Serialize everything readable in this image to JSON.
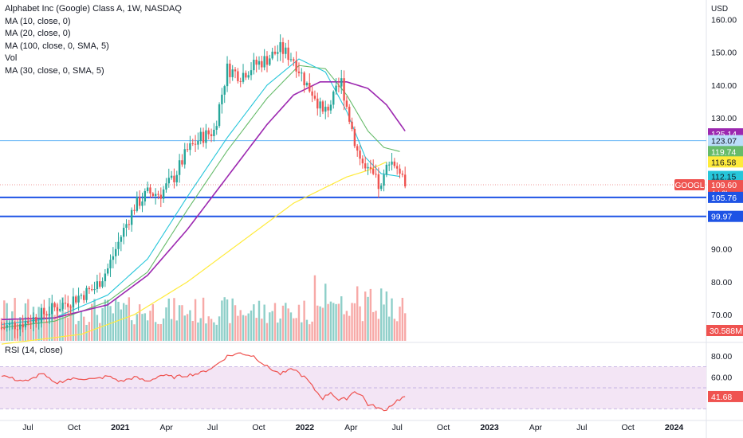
{
  "header": {
    "title": "Alphabet Inc (Google) Class A, 1W, NASDAQ",
    "studies": [
      "MA (10, close, 0)",
      "MA (20, close, 0)",
      "MA (100, close, 0, SMA, 5)",
      "Vol",
      "MA (30, close, 0, SMA, 5)"
    ],
    "rsi_label": "RSI (14, close)",
    "currency": "USD"
  },
  "colors": {
    "up": "#26a69a",
    "down": "#ef5350",
    "vol_up": "#8ecfc9",
    "vol_down": "#f7a9a7",
    "ma10": "#26c6da",
    "ma20": "#66bb6a",
    "ma_long": "#ffeb3b",
    "ma30": "#9c27b0",
    "rsi": "#ef5350",
    "rsi_band": "#f3e5f5",
    "hline_light": "#64b5f6",
    "hline_dark": "#1e53e5"
  },
  "chart_data": {
    "type": "candlestick",
    "price_axis": {
      "ticks": [
        70,
        80,
        90,
        100,
        110,
        120,
        130,
        140,
        150,
        160
      ],
      "range": [
        62,
        165
      ],
      "unit": "USD"
    },
    "time_axis": {
      "labels": [
        "Jul",
        "Oct",
        "2021",
        "Apr",
        "Jul",
        "Oct",
        "2022",
        "Apr",
        "Jul",
        "Oct",
        "2023",
        "Apr",
        "Jul",
        "Oct",
        "2024"
      ]
    },
    "anchors": {
      "ma30": [
        [
          0,
          68.5
        ],
        [
          20,
          69
        ],
        [
          40,
          73
        ],
        [
          55,
          82
        ],
        [
          70,
          96
        ],
        [
          85,
          112
        ],
        [
          100,
          128
        ],
        [
          110,
          137
        ],
        [
          120,
          141
        ],
        [
          130,
          141
        ],
        [
          138,
          139
        ],
        [
          145,
          134
        ],
        [
          152,
          126
        ]
      ],
      "ma_long": [
        [
          0,
          61
        ],
        [
          30,
          64
        ],
        [
          50,
          70
        ],
        [
          70,
          80
        ],
        [
          90,
          92
        ],
        [
          110,
          104
        ],
        [
          130,
          112
        ],
        [
          138,
          114
        ],
        [
          145,
          116.58
        ]
      ],
      "ma20": [
        [
          0,
          66
        ],
        [
          20,
          68
        ],
        [
          40,
          74
        ],
        [
          55,
          83
        ],
        [
          70,
          102
        ],
        [
          85,
          120
        ],
        [
          100,
          136
        ],
        [
          112,
          146
        ],
        [
          122,
          145
        ],
        [
          130,
          137
        ],
        [
          138,
          126
        ],
        [
          144,
          121
        ],
        [
          150,
          119.74
        ]
      ],
      "ma10": [
        [
          0,
          67
        ],
        [
          20,
          69
        ],
        [
          40,
          76
        ],
        [
          55,
          87
        ],
        [
          70,
          106
        ],
        [
          85,
          124
        ],
        [
          100,
          140
        ],
        [
          112,
          148
        ],
        [
          122,
          144
        ],
        [
          130,
          132
        ],
        [
          137,
          118
        ],
        [
          143,
          113
        ],
        [
          150,
          112.15
        ]
      ],
      "close_pts": [
        [
          0,
          66
        ],
        [
          10,
          68
        ],
        [
          20,
          72
        ],
        [
          30,
          76
        ],
        [
          35,
          78
        ],
        [
          40,
          84
        ],
        [
          45,
          94
        ],
        [
          50,
          103
        ],
        [
          55,
          107
        ],
        [
          60,
          107
        ],
        [
          65,
          112
        ],
        [
          70,
          120
        ],
        [
          75,
          124
        ],
        [
          80,
          126
        ],
        [
          85,
          145
        ],
        [
          90,
          143
        ],
        [
          95,
          146
        ],
        [
          100,
          148
        ],
        [
          105,
          151
        ],
        [
          110,
          148
        ],
        [
          115,
          140
        ],
        [
          118,
          137
        ],
        [
          121,
          131
        ],
        [
          125,
          136
        ],
        [
          128,
          141
        ],
        [
          131,
          130
        ],
        [
          134,
          120
        ],
        [
          137,
          114
        ],
        [
          140,
          112
        ],
        [
          143,
          108
        ],
        [
          146,
          118
        ],
        [
          149,
          115
        ],
        [
          150,
          111
        ]
      ],
      "rsi": [
        [
          0,
          62
        ],
        [
          5,
          58
        ],
        [
          10,
          56
        ],
        [
          15,
          64
        ],
        [
          20,
          54
        ],
        [
          25,
          58
        ],
        [
          30,
          59
        ],
        [
          35,
          58
        ],
        [
          40,
          61
        ],
        [
          45,
          56
        ],
        [
          50,
          60
        ],
        [
          55,
          56
        ],
        [
          60,
          62
        ],
        [
          65,
          60
        ],
        [
          70,
          62
        ],
        [
          75,
          64
        ],
        [
          80,
          70
        ],
        [
          85,
          80
        ],
        [
          90,
          83
        ],
        [
          95,
          80
        ],
        [
          100,
          70
        ],
        [
          105,
          63
        ],
        [
          110,
          68
        ],
        [
          115,
          58
        ],
        [
          118,
          48
        ],
        [
          121,
          40
        ],
        [
          124,
          46
        ],
        [
          127,
          38
        ],
        [
          130,
          40
        ],
        [
          133,
          47
        ],
        [
          136,
          42
        ],
        [
          138,
          34
        ],
        [
          141,
          32
        ],
        [
          144,
          28
        ],
        [
          147,
          34
        ],
        [
          149,
          38
        ],
        [
          152,
          41.68
        ]
      ]
    },
    "markers": {
      "ma30": "125.14",
      "hline1": "123.07",
      "ma20": "119.74",
      "ma_long": "116.58",
      "ma10": "112.15",
      "last": "109.60",
      "countdown": "4d 2h",
      "hline2": "105.76",
      "hline3": "99.97",
      "volume": "30.588M",
      "rsi": "41.68",
      "symbol": "GOOGL"
    },
    "horizontal_lines": [
      123.07,
      105.76,
      99.97
    ],
    "rsi_axis": {
      "ticks": [
        "80.00",
        "60.00",
        "40.00"
      ],
      "range": [
        22,
        90
      ],
      "band": [
        30,
        70
      ]
    }
  }
}
